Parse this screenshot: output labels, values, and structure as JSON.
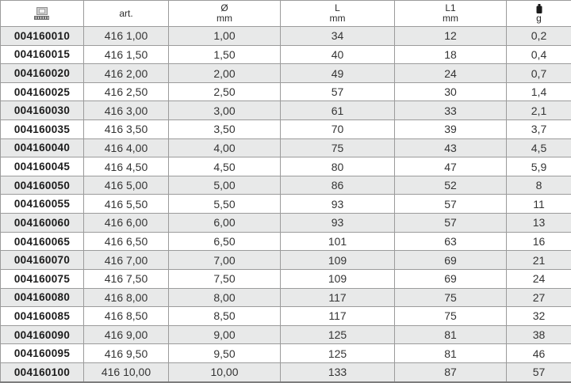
{
  "header": {
    "code_icon": "package-barcode-icon",
    "art_label": "art.",
    "diameter_symbol": "Ø",
    "diameter_unit": "mm",
    "length_symbol": "L",
    "length_unit": "mm",
    "length1_symbol": "L1",
    "length1_unit": "mm",
    "weight_icon": "weight-icon",
    "weight_unit": "g"
  },
  "colors": {
    "grid_line": "#9b9b9b",
    "outer_border": "#878787",
    "row_shade": "#e8e9e9",
    "row_white": "#ffffff",
    "value_text": "#343434",
    "code_text": "#1c1c1c"
  },
  "chart_data": {
    "type": "table",
    "columns": [
      "code",
      "art.",
      "Ø mm",
      "L mm",
      "L1 mm",
      "g"
    ],
    "column_keys": [
      "code",
      "art",
      "diameter-mm",
      "length-mm",
      "length1-mm",
      "weight-g"
    ],
    "rows": [
      [
        "004160010",
        "416 1,00",
        "1,00",
        "34",
        "12",
        "0,2"
      ],
      [
        "004160015",
        "416 1,50",
        "1,50",
        "40",
        "18",
        "0,4"
      ],
      [
        "004160020",
        "416 2,00",
        "2,00",
        "49",
        "24",
        "0,7"
      ],
      [
        "004160025",
        "416 2,50",
        "2,50",
        "57",
        "30",
        "1,4"
      ],
      [
        "004160030",
        "416 3,00",
        "3,00",
        "61",
        "33",
        "2,1"
      ],
      [
        "004160035",
        "416 3,50",
        "3,50",
        "70",
        "39",
        "3,7"
      ],
      [
        "004160040",
        "416 4,00",
        "4,00",
        "75",
        "43",
        "4,5"
      ],
      [
        "004160045",
        "416 4,50",
        "4,50",
        "80",
        "47",
        "5,9"
      ],
      [
        "004160050",
        "416 5,00",
        "5,00",
        "86",
        "52",
        "8"
      ],
      [
        "004160055",
        "416 5,50",
        "5,50",
        "93",
        "57",
        "11"
      ],
      [
        "004160060",
        "416 6,00",
        "6,00",
        "93",
        "57",
        "13"
      ],
      [
        "004160065",
        "416 6,50",
        "6,50",
        "101",
        "63",
        "16"
      ],
      [
        "004160070",
        "416 7,00",
        "7,00",
        "109",
        "69",
        "21"
      ],
      [
        "004160075",
        "416 7,50",
        "7,50",
        "109",
        "69",
        "24"
      ],
      [
        "004160080",
        "416 8,00",
        "8,00",
        "117",
        "75",
        "27"
      ],
      [
        "004160085",
        "416 8,50",
        "8,50",
        "117",
        "75",
        "32"
      ],
      [
        "004160090",
        "416 9,00",
        "9,00",
        "125",
        "81",
        "38"
      ],
      [
        "004160095",
        "416 9,50",
        "9,50",
        "125",
        "81",
        "46"
      ],
      [
        "004160100",
        "416 10,00",
        "10,00",
        "133",
        "87",
        "57"
      ]
    ]
  }
}
